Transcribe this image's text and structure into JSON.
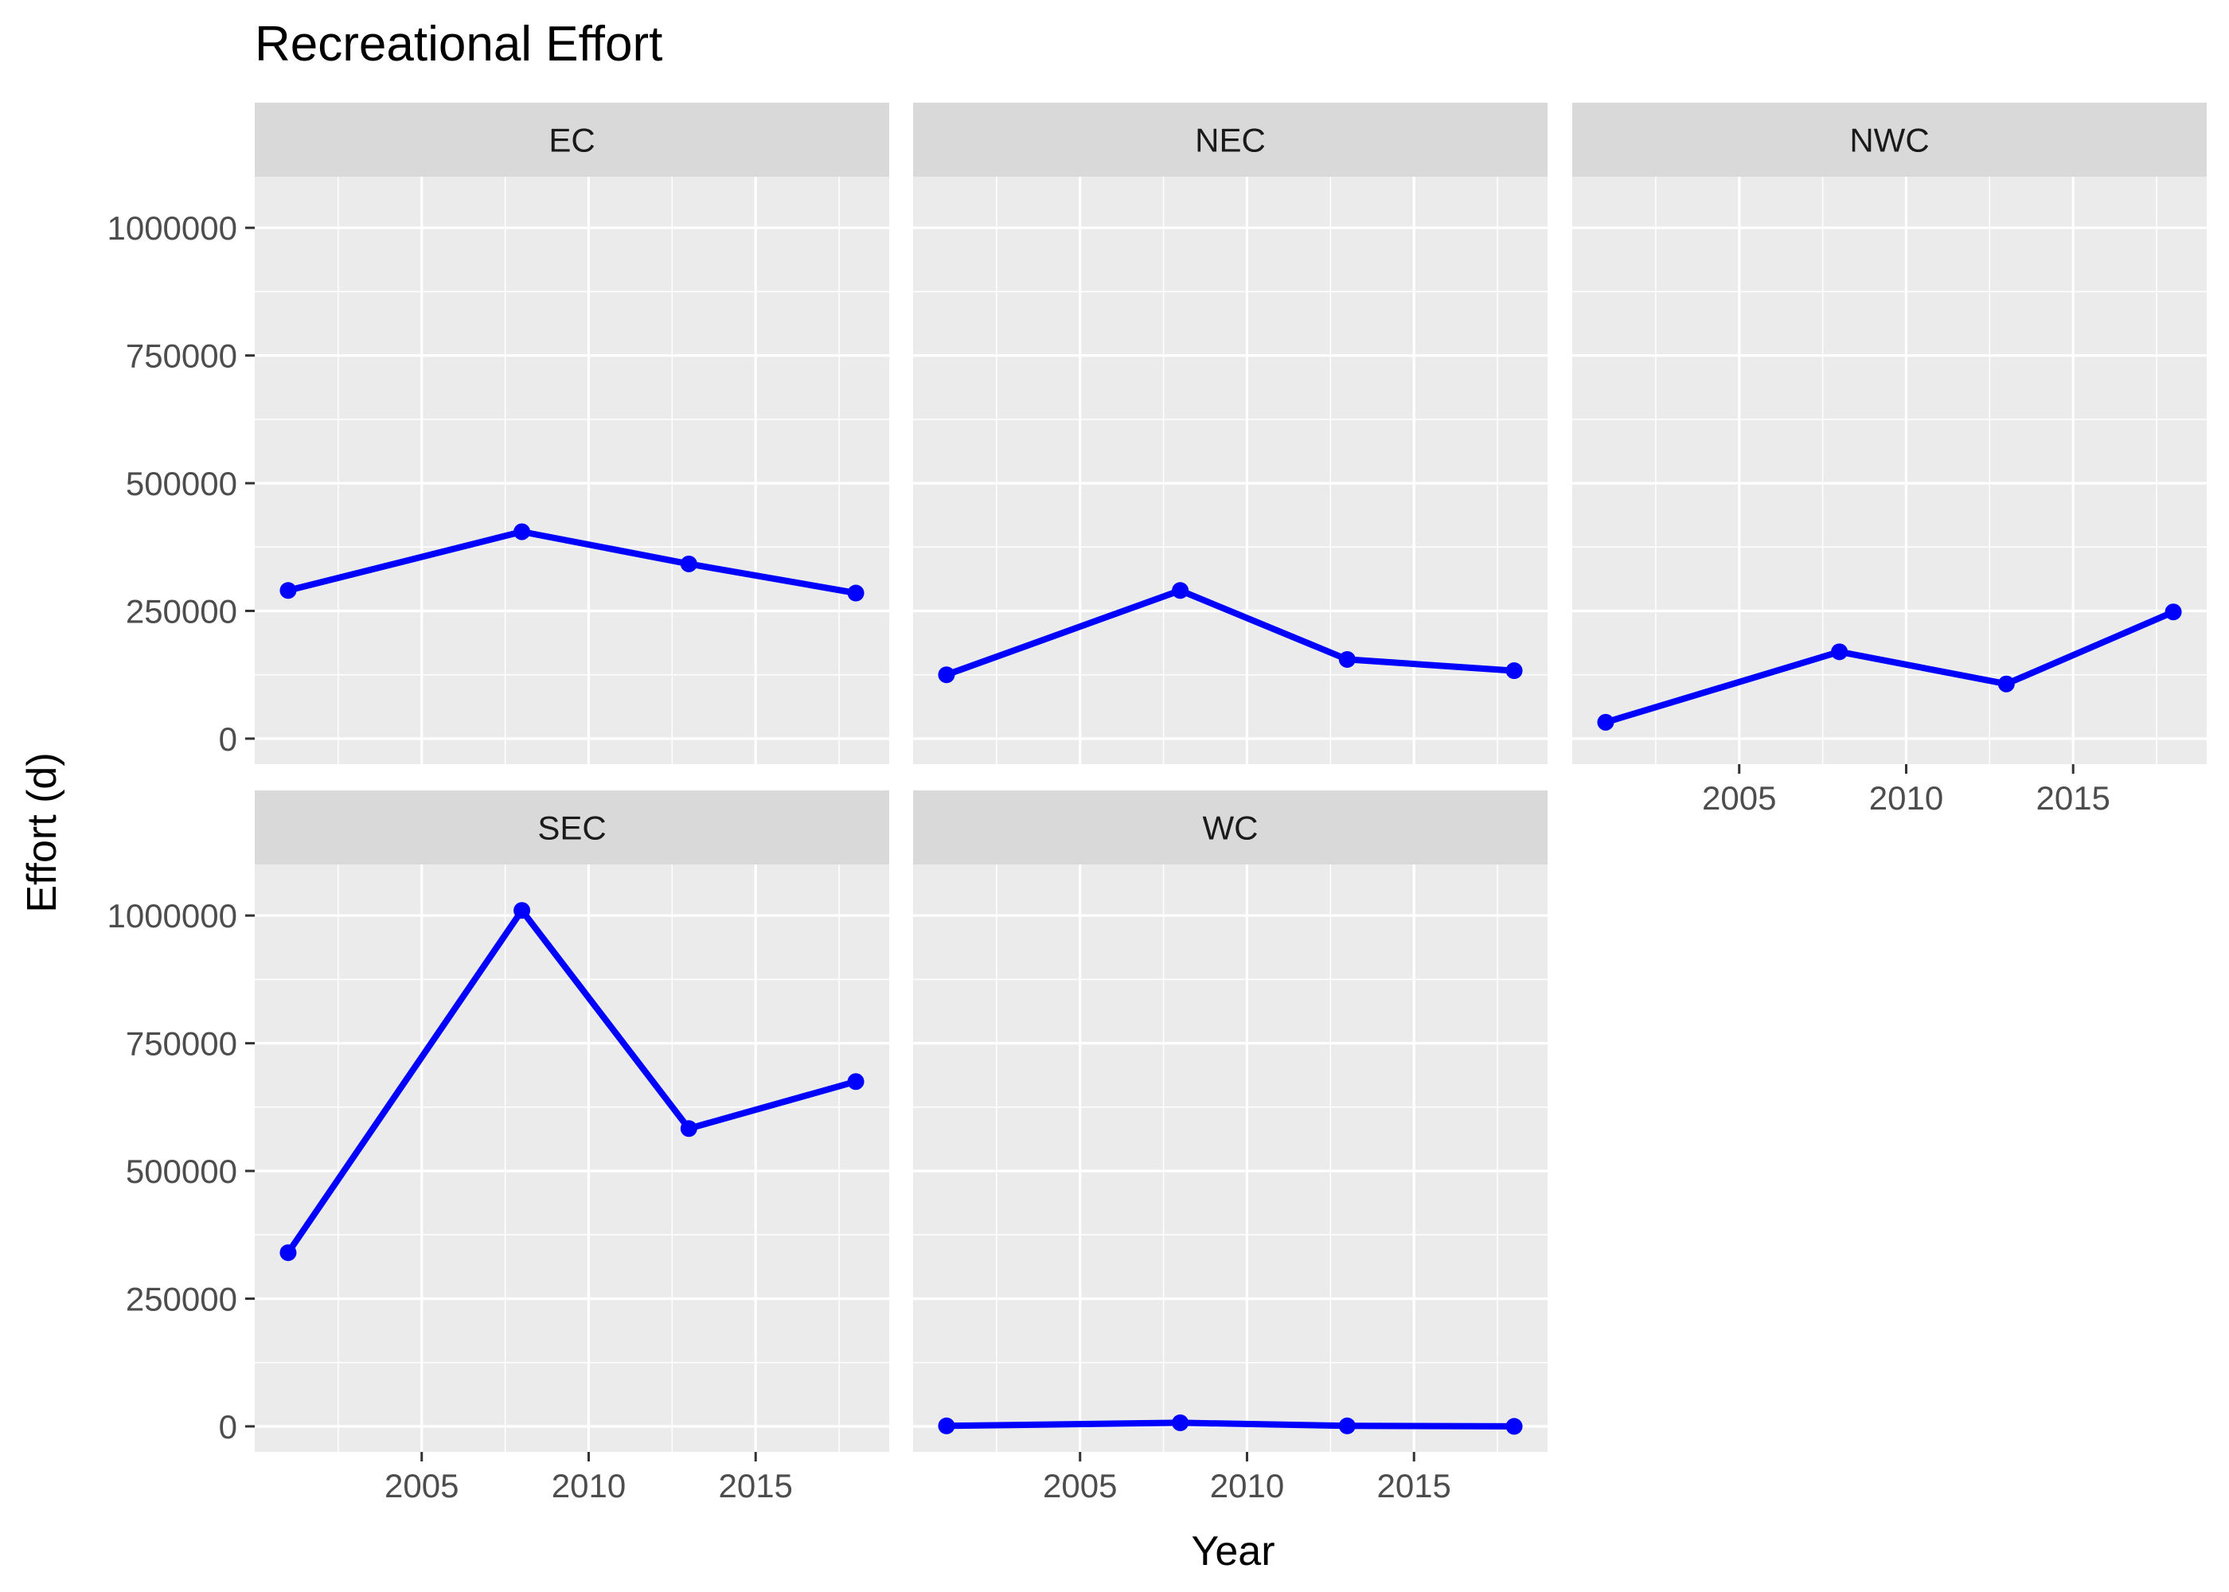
{
  "chart_data": {
    "type": "line",
    "title": "Recreational Effort",
    "xlabel": "Year",
    "ylabel": "Effort (d)",
    "xlim": [
      2000,
      2019
    ],
    "ylim": [
      -50000,
      1100000
    ],
    "x_ticks": [
      2005,
      2010,
      2015
    ],
    "y_ticks": [
      0,
      250000,
      500000,
      750000,
      1000000
    ],
    "grid": true,
    "line_color": "#0000ff",
    "panel_background": "#ebebeb",
    "strip_background": "#d9d9d9",
    "x": [
      2001,
      2008,
      2013,
      2018
    ],
    "facets": [
      {
        "name": "EC",
        "values": [
          290000,
          405000,
          342000,
          285000
        ]
      },
      {
        "name": "NEC",
        "values": [
          125000,
          290000,
          155000,
          133000
        ]
      },
      {
        "name": "NWC",
        "values": [
          32000,
          170000,
          107000,
          248000
        ]
      },
      {
        "name": "SEC",
        "values": [
          340000,
          1010000,
          583000,
          675000
        ]
      },
      {
        "name": "WC",
        "values": [
          1000,
          7000,
          1000,
          0
        ]
      }
    ]
  }
}
